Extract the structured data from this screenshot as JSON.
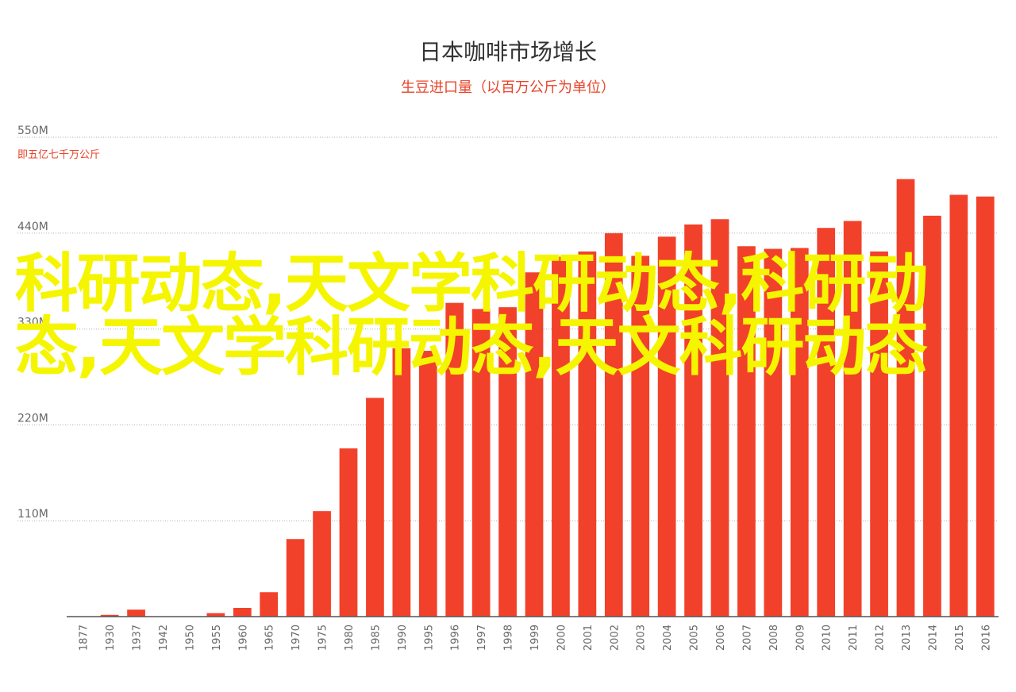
{
  "header": {
    "title": "日本咖啡市场增长",
    "subtitle": "生豆进口量（以百万公斤为单位）",
    "unit_note": "即五亿七千万公斤"
  },
  "overlay_text": "科研动态,天文学科研动态,科研动态,天文学科研动态,天文科研动态",
  "colors": {
    "bar": "#f2412a",
    "grid": "#aaaaaa",
    "axis": "#555555",
    "overlay": "#f5f500"
  },
  "chart_data": {
    "type": "bar",
    "title": "日本咖啡市场增长",
    "subtitle": "生豆进口量（以百万公斤为单位）",
    "xlabel": "",
    "ylabel": "",
    "ylim": [
      0,
      550
    ],
    "yticks": [
      {
        "value": 110,
        "label": "110M"
      },
      {
        "value": 220,
        "label": "220M"
      },
      {
        "value": 330,
        "label": "330M"
      },
      {
        "value": 440,
        "label": "440M"
      },
      {
        "value": 550,
        "label": "550M"
      }
    ],
    "grid": true,
    "categories": [
      "1877",
      "1930",
      "1937",
      "1942",
      "1950",
      "1955",
      "1960",
      "1965",
      "1970",
      "1975",
      "1980",
      "1985",
      "1990",
      "1995",
      "1996",
      "1997",
      "1998",
      "1999",
      "2000",
      "2001",
      "2002",
      "2003",
      "2004",
      "2005",
      "2006",
      "2007",
      "2008",
      "2009",
      "2010",
      "2011",
      "2012",
      "2013",
      "2014",
      "2015",
      "2016"
    ],
    "values": [
      0,
      2,
      8,
      0,
      0,
      4,
      10,
      28,
      89,
      121,
      193,
      251,
      308,
      305,
      360,
      353,
      355,
      395,
      413,
      419,
      440,
      414,
      436,
      450,
      456,
      425,
      422,
      423,
      446,
      454,
      419,
      502,
      460,
      484,
      482
    ]
  }
}
